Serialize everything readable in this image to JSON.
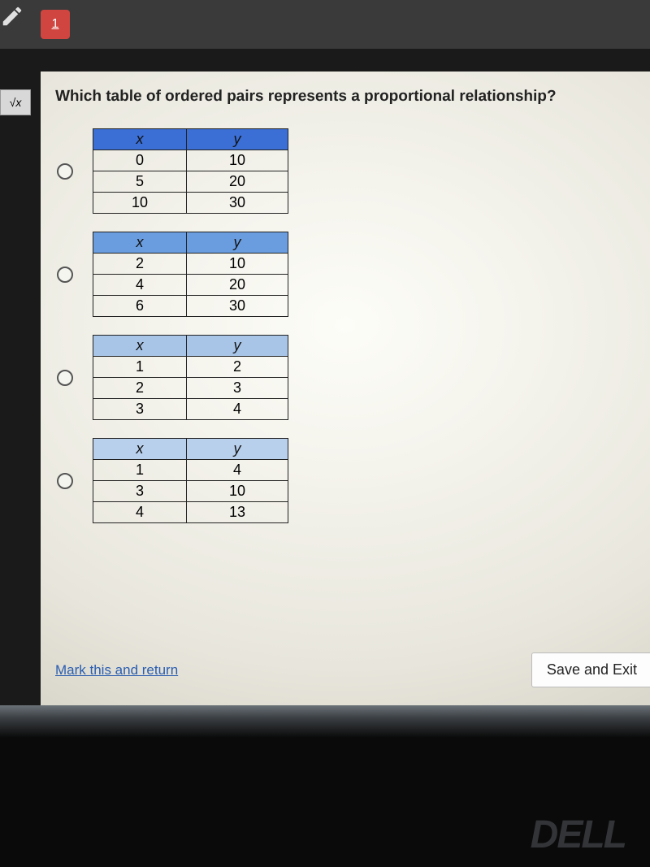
{
  "topbar": {
    "tab_number": "1"
  },
  "left_tool": {
    "label": "√x"
  },
  "question": {
    "text": "Which table of ordered pairs represents a proportional relationship?"
  },
  "options": [
    {
      "header_x": "x",
      "header_y": "y",
      "header_bg": "#3b6fd6",
      "rows": [
        [
          "0",
          "10"
        ],
        [
          "5",
          "20"
        ],
        [
          "10",
          "30"
        ]
      ],
      "col_x_width": 115,
      "col_y_width": 125
    },
    {
      "header_x": "x",
      "header_y": "y",
      "header_bg": "#6a9de0",
      "rows": [
        [
          "2",
          "10"
        ],
        [
          "4",
          "20"
        ],
        [
          "6",
          "30"
        ]
      ],
      "col_x_width": 115,
      "col_y_width": 125
    },
    {
      "header_x": "x",
      "header_y": "y",
      "header_bg": "#a8c5e8",
      "rows": [
        [
          "1",
          "2"
        ],
        [
          "2",
          "3"
        ],
        [
          "3",
          "4"
        ]
      ],
      "col_x_width": 115,
      "col_y_width": 125
    },
    {
      "header_x": "x",
      "header_y": "y",
      "header_bg": "#b8d0ec",
      "rows": [
        [
          "1",
          "4"
        ],
        [
          "3",
          "10"
        ],
        [
          "4",
          "13"
        ]
      ],
      "col_x_width": 115,
      "col_y_width": 125
    }
  ],
  "footer": {
    "mark_return": "Mark this and return",
    "save_exit": "Save and Exit"
  },
  "logo": {
    "text": "DELL"
  },
  "colors": {
    "topbar_bg": "#3a3a3a",
    "tab_badge_bg": "#d0453f",
    "panel_bg_center": "#fdfdf8",
    "panel_bg_edge": "#c8c5b8",
    "link_color": "#2a5db0",
    "table_border": "#222222"
  }
}
